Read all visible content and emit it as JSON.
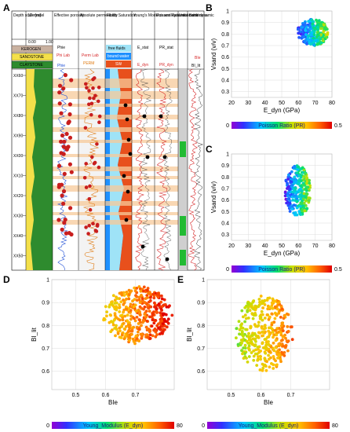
{
  "panels": {
    "A": "A",
    "B": "B",
    "C": "C",
    "D": "D",
    "E": "E"
  },
  "log": {
    "headers": [
      "Depth scale [m]",
      "1D model",
      "Effective porosity",
      "Absolute permeability",
      "Fluids Saturation",
      "Young's Modulus and dynamic",
      "Poisson Ratio static and dynamic",
      "Units name",
      "Brittleness"
    ],
    "lith_legend": [
      "KEROGEN",
      "SANDSTONE",
      "CLAYSTONE"
    ],
    "lith_scale": [
      "0.00",
      "1.00"
    ],
    "curve_labels": {
      "phie": "Phie",
      "phi_lab": "Phi Lab",
      "phie2": "Phie",
      "perm_lab": "Perm Lab",
      "perm": "PERM",
      "free_fluids": "free fluids",
      "bound_water": "bound water",
      "sw": "SW",
      "e_stat": "E_stat",
      "e_dyn": "E_dyn",
      "pr_stat": "PR_stat",
      "pr_dyn": "PR_dyn",
      "bie": "BIe",
      "bi_lit": "BI_lit"
    },
    "depths": [
      "XX60",
      "XX70",
      "XX80",
      "XX90",
      "XX00",
      "XX10",
      "XX20",
      "XX30",
      "XX40",
      "XX50"
    ]
  },
  "chart_data": [
    {
      "id": "B",
      "type": "scatter",
      "xlabel": "E_dyn (GPa)",
      "ylabel": "Vsand (v/v)",
      "xlim": [
        20,
        80
      ],
      "ylim": [
        0.25,
        1.0
      ],
      "xticks": [
        20,
        30,
        40,
        50,
        60,
        70,
        80
      ],
      "yticks": [
        0.3,
        0.4,
        0.5,
        0.6,
        0.7,
        0.8,
        0.9,
        1
      ],
      "colorbar": {
        "label": "Poisson Ratio (PR)",
        "min": "0",
        "max": "0.5"
      },
      "cluster": {
        "x_range": [
          60,
          78
        ],
        "y_range": [
          0.7,
          0.93
        ],
        "color_range": [
          0.05,
          0.3
        ]
      }
    },
    {
      "id": "C",
      "type": "scatter",
      "xlabel": "E_dyn (GPa)",
      "ylabel": "Vsand (v/v)",
      "xlim": [
        20,
        80
      ],
      "ylim": [
        0.25,
        1.0
      ],
      "xticks": [
        20,
        30,
        40,
        50,
        60,
        70,
        80
      ],
      "yticks": [
        0.3,
        0.4,
        0.5,
        0.6,
        0.7,
        0.8,
        0.9,
        1
      ],
      "colorbar": {
        "label": "Poisson Ratio (PR)",
        "min": "0",
        "max": "0.5"
      },
      "cluster": {
        "x_range": [
          52,
          67
        ],
        "y_range": [
          0.45,
          0.9
        ],
        "color_range": [
          0.05,
          0.3
        ]
      }
    },
    {
      "id": "D",
      "type": "scatter",
      "xlabel": "BIe",
      "ylabel": "BI_lit",
      "xlim": [
        0.42,
        0.83
      ],
      "ylim": [
        0.52,
        1.0
      ],
      "xticks": [
        0.5,
        0.6,
        0.7
      ],
      "yticks": [
        0.6,
        0.7,
        0.8,
        0.9,
        1
      ],
      "colorbar": {
        "label": "Young_Modulus (E_dyn)",
        "min": "0",
        "max": "80"
      },
      "cluster": {
        "x_range": [
          0.6,
          0.82
        ],
        "y_range": [
          0.72,
          0.97
        ],
        "color_range": [
          55,
          80
        ]
      }
    },
    {
      "id": "E",
      "type": "scatter",
      "xlabel": "BIe",
      "ylabel": "BI_lit",
      "xlim": [
        0.42,
        0.83
      ],
      "ylim": [
        0.52,
        1.0
      ],
      "xticks": [
        0.5,
        0.6,
        0.7
      ],
      "yticks": [
        0.6,
        0.7,
        0.8,
        0.9,
        1
      ],
      "colorbar": {
        "label": "Young_Modulus (E_dyn)",
        "min": "0",
        "max": "80"
      },
      "cluster": {
        "x_range": [
          0.52,
          0.7
        ],
        "y_range": [
          0.6,
          0.93
        ],
        "color_range": [
          45,
          70
        ]
      }
    }
  ]
}
